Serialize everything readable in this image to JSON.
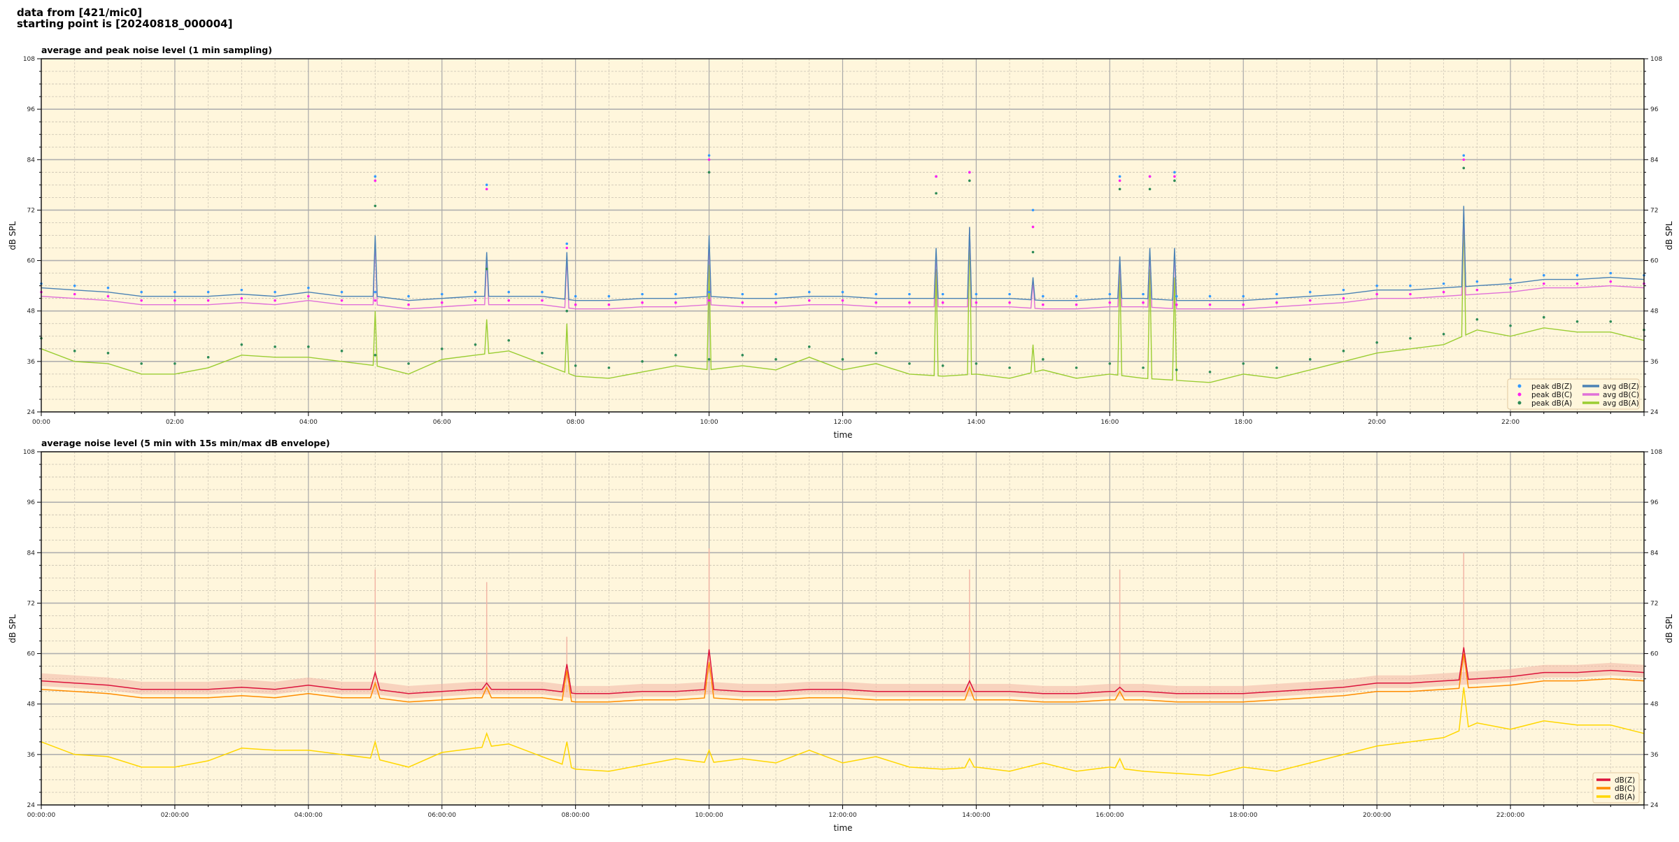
{
  "header": {
    "line1": "data from [421/mic0]",
    "line2": "starting point is [20240818_000004]"
  },
  "colors": {
    "plot_bg": "#fff6dc",
    "peak_z": "#3399ff",
    "peak_c": "#ff22ee",
    "peak_a": "#2e8b57",
    "avg_z": "#4a82b4",
    "avg_c": "#e070d8",
    "avg_a": "#9acd32",
    "db_z": "#dc143c",
    "db_c": "#ff8c00",
    "db_a": "#ffd700",
    "envelope": "#f2b6a6"
  },
  "chart_data": [
    {
      "type": "line",
      "title": "average and peak noise level (1 min sampling)",
      "xlabel": "time",
      "ylabel": "dB SPL",
      "ylim": [
        24,
        108
      ],
      "xlim_hours": [
        0,
        24
      ],
      "yticks": [
        "24",
        "36",
        "48",
        "60",
        "72",
        "84",
        "96",
        "108"
      ],
      "xticks": [
        "00:00",
        "02:00",
        "04:00",
        "06:00",
        "08:00",
        "10:00",
        "12:00",
        "14:00",
        "16:00",
        "18:00",
        "20:00",
        "22:00"
      ],
      "grid": true,
      "legend_position": "bottom-right",
      "x_hours": [
        0,
        0.5,
        1,
        1.5,
        2,
        2.5,
        3,
        3.5,
        4,
        4.5,
        5,
        5.5,
        6,
        6.5,
        7,
        7.5,
        8,
        8.5,
        9,
        9.5,
        10,
        10.5,
        11,
        11.5,
        12,
        12.5,
        13,
        13.5,
        14,
        14.5,
        15,
        15.5,
        16,
        16.5,
        17,
        17.5,
        18,
        18.5,
        19,
        19.5,
        20,
        20.5,
        21,
        21.5,
        22,
        22.5,
        23,
        23.5,
        24
      ],
      "series": [
        {
          "name": "avg dB(Z)",
          "kind": "line",
          "color_key": "avg_z",
          "values": [
            53.5,
            53,
            52.5,
            51.5,
            51.5,
            51.5,
            52,
            51.5,
            52.5,
            51.5,
            51.5,
            50.5,
            51,
            51.5,
            51.5,
            51.5,
            50.5,
            50.5,
            51,
            51,
            51.5,
            51,
            51,
            51.5,
            51.5,
            51,
            51,
            51,
            51,
            51,
            50.5,
            50.5,
            51,
            51,
            50.5,
            50.5,
            50.5,
            51,
            51.5,
            52,
            53,
            53,
            53.5,
            54,
            54.5,
            55.5,
            55.5,
            56,
            55.5
          ]
        },
        {
          "name": "avg dB(C)",
          "kind": "line",
          "color_key": "avg_c",
          "values": [
            51.5,
            51,
            50.5,
            49.5,
            49.5,
            49.5,
            50,
            49.5,
            50.5,
            49.5,
            49.5,
            48.5,
            49,
            49.5,
            49.5,
            49.5,
            48.5,
            48.5,
            49,
            49,
            49.5,
            49,
            49,
            49.5,
            49.5,
            49,
            49,
            49,
            49,
            49,
            48.5,
            48.5,
            49,
            49,
            48.5,
            48.5,
            48.5,
            49,
            49.5,
            50,
            51,
            51,
            51.5,
            52,
            52.5,
            53.5,
            53.5,
            54,
            53.5
          ]
        },
        {
          "name": "avg dB(A)",
          "kind": "line",
          "color_key": "avg_a",
          "values": [
            39,
            36,
            35.5,
            33,
            33,
            34.5,
            37.5,
            37,
            37,
            36,
            35,
            33,
            36.5,
            37.5,
            38.5,
            35.5,
            32.5,
            32,
            33.5,
            35,
            34,
            35,
            34,
            37,
            34,
            35.5,
            33,
            32.5,
            33,
            32,
            34,
            32,
            33,
            32,
            31.5,
            31,
            33,
            32,
            34,
            36,
            38,
            39,
            40,
            43.5,
            42,
            44,
            43,
            43,
            41
          ]
        },
        {
          "name": "peak dB(Z)",
          "kind": "scatter",
          "color_key": "peak_z",
          "values": [
            54.5,
            54,
            53.5,
            52.5,
            52.5,
            52.5,
            53,
            52.5,
            53.5,
            52.5,
            52.5,
            51.5,
            52,
            52.5,
            52.5,
            52.5,
            51.5,
            51.5,
            52,
            52,
            52.5,
            52,
            52,
            52.5,
            52.5,
            52,
            52,
            52,
            52,
            52,
            51.5,
            51.5,
            52,
            52,
            51.5,
            51.5,
            51.5,
            52,
            52.5,
            53,
            54,
            54,
            54.5,
            55,
            55.5,
            56.5,
            56.5,
            57,
            56.5
          ]
        },
        {
          "name": "peak dB(C)",
          "kind": "scatter",
          "color_key": "peak_c",
          "values": [
            52.5,
            52,
            51.5,
            50.5,
            50.5,
            50.5,
            51,
            50.5,
            51.5,
            50.5,
            50.5,
            49.5,
            50,
            50.5,
            50.5,
            50.5,
            49.5,
            49.5,
            50,
            50,
            50.5,
            50,
            50,
            50.5,
            50.5,
            50,
            50,
            50,
            50,
            50,
            49.5,
            49.5,
            50,
            50,
            49.5,
            49.5,
            49.5,
            50,
            50.5,
            51,
            52,
            52,
            52.5,
            53,
            53.5,
            54.5,
            54.5,
            55,
            54.5
          ]
        },
        {
          "name": "peak dB(A)",
          "kind": "scatter",
          "color_key": "peak_a",
          "values": [
            41.5,
            38.5,
            38,
            35.5,
            35.5,
            37,
            40,
            39.5,
            39.5,
            38.5,
            37.5,
            35.5,
            39,
            40,
            41,
            38,
            35,
            34.5,
            36,
            37.5,
            36.5,
            37.5,
            36.5,
            39.5,
            36.5,
            38,
            35.5,
            35,
            35.5,
            34.5,
            36.5,
            34.5,
            35.5,
            34.5,
            34,
            33.5,
            35.5,
            34.5,
            36.5,
            38.5,
            40.5,
            41.5,
            42.5,
            46,
            44.5,
            46.5,
            45.5,
            45.5,
            43.5
          ]
        }
      ],
      "events": [
        {
          "time": "05:00",
          "t": 5.0,
          "avg_z": 66,
          "avg_c": 65,
          "avg_a": 48,
          "peak_z": 80,
          "peak_c": 79,
          "peak_a": 73
        },
        {
          "time": "06:40",
          "t": 6.67,
          "avg_z": 62,
          "avg_c": 61,
          "avg_a": 46,
          "peak_z": 78,
          "peak_c": 77,
          "peak_a": 58
        },
        {
          "time": "07:52",
          "t": 7.87,
          "avg_z": 62,
          "avg_c": 61,
          "avg_a": 45,
          "peak_z": 64,
          "peak_c": 63,
          "peak_a": 48
        },
        {
          "time": "10:00",
          "t": 10.0,
          "avg_z": 66,
          "avg_c": 65,
          "avg_a": 59,
          "peak_z": 85,
          "peak_c": 84,
          "peak_a": 81
        },
        {
          "time": "13:24",
          "t": 13.4,
          "avg_z": 63,
          "avg_c": 62,
          "avg_a": 58,
          "peak_z": 80,
          "peak_c": 80,
          "peak_a": 76
        },
        {
          "time": "13:54",
          "t": 13.9,
          "avg_z": 68,
          "avg_c": 68,
          "avg_a": 68,
          "peak_z": 81,
          "peak_c": 81,
          "peak_a": 79
        },
        {
          "time": "14:51",
          "t": 14.85,
          "avg_z": 56,
          "avg_c": 55,
          "avg_a": 40,
          "peak_z": 72,
          "peak_c": 68,
          "peak_a": 62
        },
        {
          "time": "16:09",
          "t": 16.15,
          "avg_z": 61,
          "avg_c": 60,
          "avg_a": 58,
          "peak_z": 80,
          "peak_c": 79,
          "peak_a": 77
        },
        {
          "time": "16:36",
          "t": 16.6,
          "avg_z": 63,
          "avg_c": 62,
          "avg_a": 58,
          "peak_z": 80,
          "peak_c": 80,
          "peak_a": 77
        },
        {
          "time": "16:58",
          "t": 16.97,
          "avg_z": 63,
          "avg_c": 62,
          "avg_a": 56,
          "peak_z": 81,
          "peak_c": 80,
          "peak_a": 79
        },
        {
          "time": "21:18",
          "t": 21.3,
          "avg_z": 73,
          "avg_c": 72,
          "avg_a": 71,
          "peak_z": 85,
          "peak_c": 84,
          "peak_a": 82
        }
      ]
    },
    {
      "type": "line",
      "title": "average noise level (5 min with 15s min/max dB envelope)",
      "xlabel": "time",
      "ylabel": "dB SPL",
      "ylim": [
        24,
        108
      ],
      "xlim_hours": [
        0,
        24
      ],
      "yticks": [
        "24",
        "36",
        "48",
        "60",
        "72",
        "84",
        "96",
        "108"
      ],
      "xticks": [
        "00:00:00",
        "02:00:00",
        "04:00:00",
        "06:00:00",
        "08:00:00",
        "10:00:00",
        "12:00:00",
        "14:00:00",
        "16:00:00",
        "18:00:00",
        "20:00:00",
        "22:00:00"
      ],
      "grid": true,
      "legend_position": "bottom-right",
      "x_hours": [
        0,
        0.5,
        1,
        1.5,
        2,
        2.5,
        3,
        3.5,
        4,
        4.5,
        5,
        5.5,
        6,
        6.5,
        7,
        7.5,
        8,
        8.5,
        9,
        9.5,
        10,
        10.5,
        11,
        11.5,
        12,
        12.5,
        13,
        13.5,
        14,
        14.5,
        15,
        15.5,
        16,
        16.5,
        17,
        17.5,
        18,
        18.5,
        19,
        19.5,
        20,
        20.5,
        21,
        21.5,
        22,
        22.5,
        23,
        23.5,
        24
      ],
      "series": [
        {
          "name": "dB(Z)",
          "color_key": "db_z",
          "values": [
            53.5,
            53,
            52.5,
            51.5,
            51.5,
            51.5,
            52,
            51.5,
            52.5,
            51.5,
            51.5,
            50.5,
            51,
            51.5,
            51.5,
            51.5,
            50.5,
            50.5,
            51,
            51,
            51.5,
            51,
            51,
            51.5,
            51.5,
            51,
            51,
            51,
            51,
            51,
            50.5,
            50.5,
            51,
            51,
            50.5,
            50.5,
            50.5,
            51,
            51.5,
            52,
            53,
            53,
            53.5,
            54,
            54.5,
            55.5,
            55.5,
            56,
            55.5
          ]
        },
        {
          "name": "dB(C)",
          "color_key": "db_c",
          "values": [
            51.5,
            51,
            50.5,
            49.5,
            49.5,
            49.5,
            50,
            49.5,
            50.5,
            49.5,
            49.5,
            48.5,
            49,
            49.5,
            49.5,
            49.5,
            48.5,
            48.5,
            49,
            49,
            49.5,
            49,
            49,
            49.5,
            49.5,
            49,
            49,
            49,
            49,
            49,
            48.5,
            48.5,
            49,
            49,
            48.5,
            48.5,
            48.5,
            49,
            49.5,
            50,
            51,
            51,
            51.5,
            52,
            52.5,
            53.5,
            53.5,
            54,
            53.5
          ]
        },
        {
          "name": "dB(A)",
          "color_key": "db_a",
          "values": [
            39,
            36,
            35.5,
            33,
            33,
            34.5,
            37.5,
            37,
            37,
            36,
            35,
            33,
            36.5,
            37.5,
            38.5,
            35.5,
            32.5,
            32,
            33.5,
            35,
            34,
            35,
            34,
            37,
            34,
            35.5,
            33,
            32.5,
            33,
            32,
            34,
            32,
            33,
            32,
            31.5,
            31,
            33,
            32,
            34,
            36,
            38,
            39,
            40,
            43.5,
            42,
            44,
            43,
            43,
            41
          ]
        }
      ],
      "events": [
        {
          "t": 5.0,
          "db_z": 55.5,
          "db_c": 53,
          "db_a": 39,
          "envelope_max": 80
        },
        {
          "t": 6.67,
          "db_z": 53,
          "db_c": 52,
          "db_a": 41,
          "envelope_max": 77
        },
        {
          "t": 7.87,
          "db_z": 57.5,
          "db_c": 56,
          "db_a": 39,
          "envelope_max": 64
        },
        {
          "t": 10.0,
          "db_z": 61,
          "db_c": 58,
          "db_a": 37,
          "envelope_max": 85
        },
        {
          "t": 13.9,
          "db_z": 53.5,
          "db_c": 52,
          "db_a": 35,
          "envelope_max": 80
        },
        {
          "t": 16.15,
          "db_z": 52,
          "db_c": 51,
          "db_a": 35,
          "envelope_max": 80
        },
        {
          "t": 21.3,
          "db_z": 61.5,
          "db_c": 60,
          "db_a": 52,
          "envelope_max": 84
        }
      ]
    }
  ]
}
